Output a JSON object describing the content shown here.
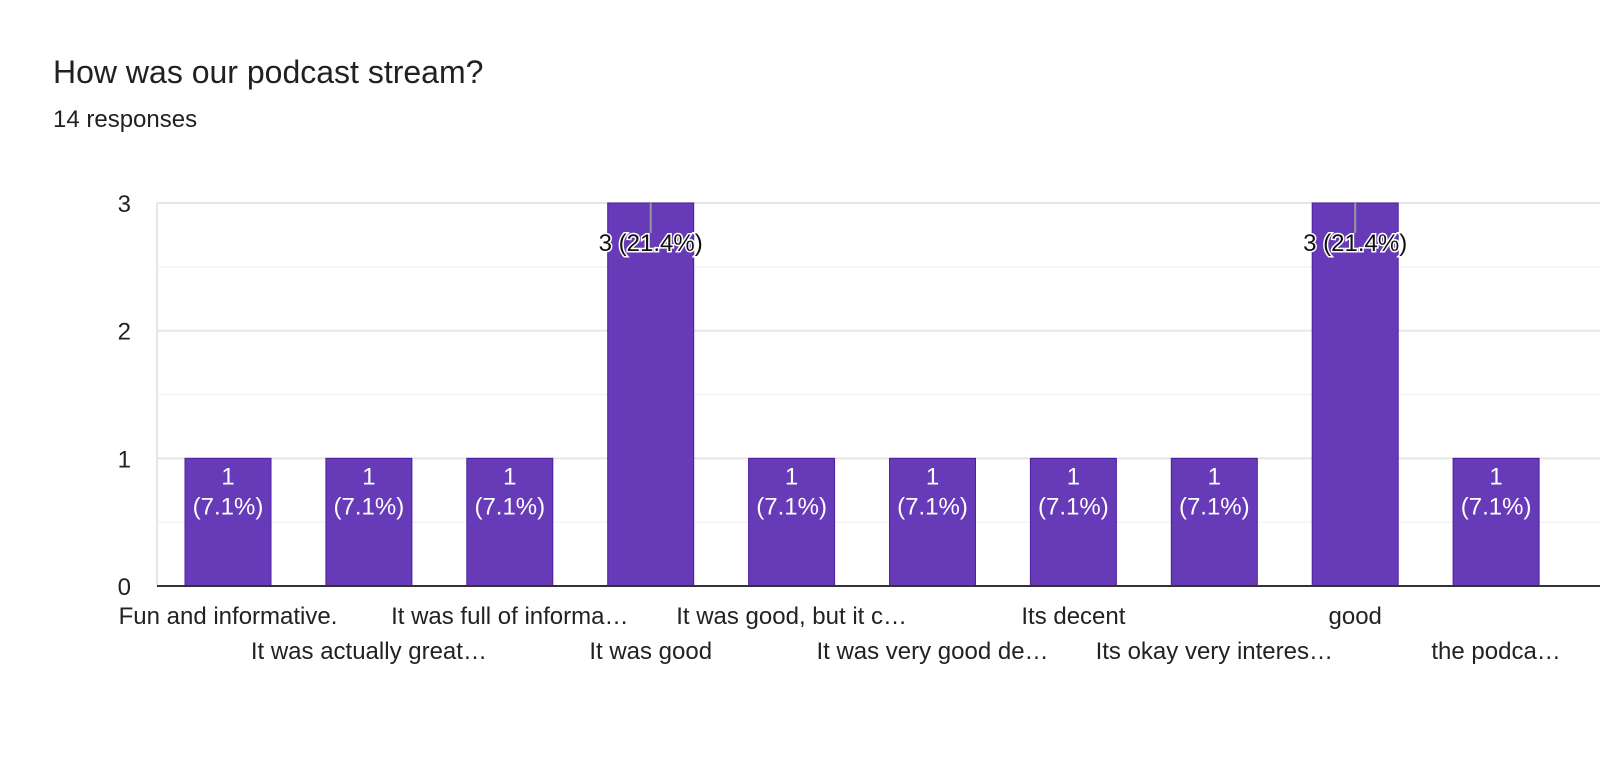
{
  "question": {
    "title": "How was our podcast stream?",
    "responses": "14 responses"
  },
  "colors": {
    "bar": "#673ab7",
    "bar_stroke": "#4a1fa0",
    "grid": "#eeeeee",
    "axis": "#333333",
    "text": "#222222",
    "label_inside": "#ffffff"
  },
  "chart_data": {
    "type": "bar",
    "categories": [
      "Fun and informative.",
      "It was actually great…",
      "It was full of informa…",
      "It was good",
      "It was good, but it c…",
      "It was very good de…",
      "Its decent",
      "Its okay very interes…",
      "good",
      "the podca…"
    ],
    "values": [
      1,
      1,
      1,
      3,
      1,
      1,
      1,
      1,
      3,
      1
    ],
    "data_labels": [
      [
        "1",
        "(7.1%)"
      ],
      [
        "1",
        "(7.1%)"
      ],
      [
        "1",
        "(7.1%)"
      ],
      [
        "3 (21.4%)"
      ],
      [
        "1",
        "(7.1%)"
      ],
      [
        "1",
        "(7.1%)"
      ],
      [
        "1",
        "(7.1%)"
      ],
      [
        "1",
        "(7.1%)"
      ],
      [
        "3 (21.4%)"
      ],
      [
        "1",
        "(7.1%)"
      ]
    ],
    "ylim": [
      0,
      3
    ],
    "yticks": [
      "0",
      "1",
      "2",
      "3"
    ],
    "grid": true,
    "xlabel": "",
    "ylabel": ""
  }
}
